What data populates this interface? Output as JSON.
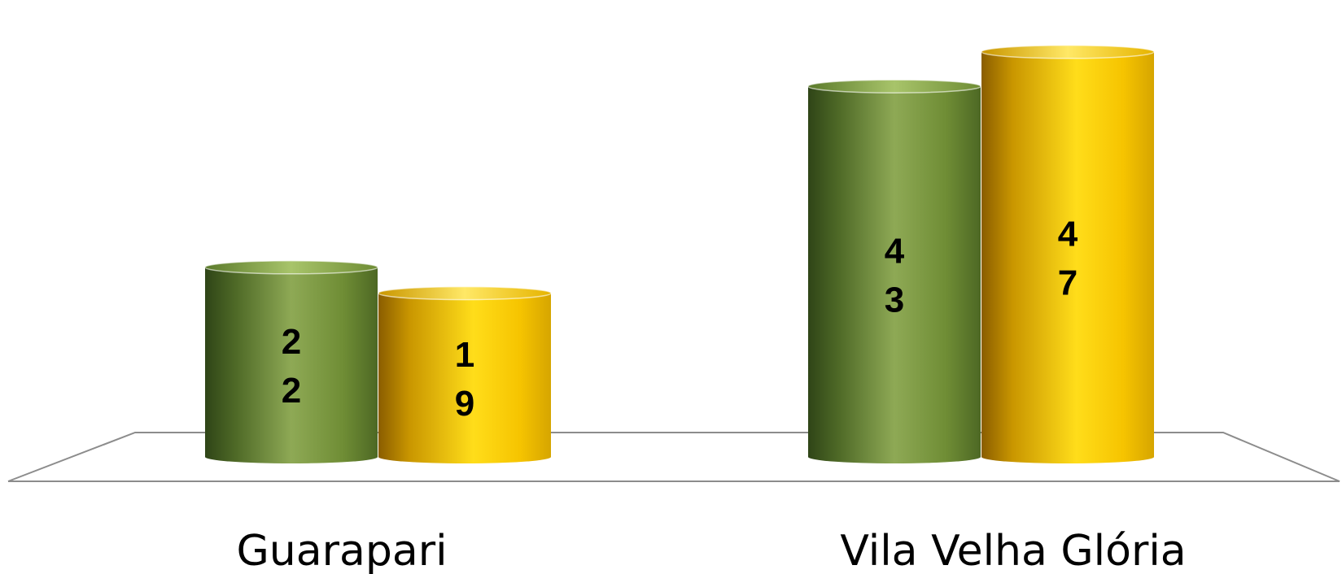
{
  "chart_data": {
    "type": "bar",
    "style": "3d-cylinder",
    "categories": [
      "Guarapari",
      "Vila Velha Glória"
    ],
    "series": [
      {
        "values": [
          22,
          19
        ],
        "color": "#7a9a3c"
      },
      {
        "values": [
          43,
          47
        ],
        "color": "#f2c200"
      }
    ],
    "grouping": "by-category",
    "data_labels": [
      "2\n2",
      "1\n9",
      "4\n3",
      "4\n7"
    ],
    "ylim": [
      0,
      50
    ],
    "grid": false,
    "legend": "none",
    "title": "",
    "xlabel": "",
    "ylabel": ""
  }
}
